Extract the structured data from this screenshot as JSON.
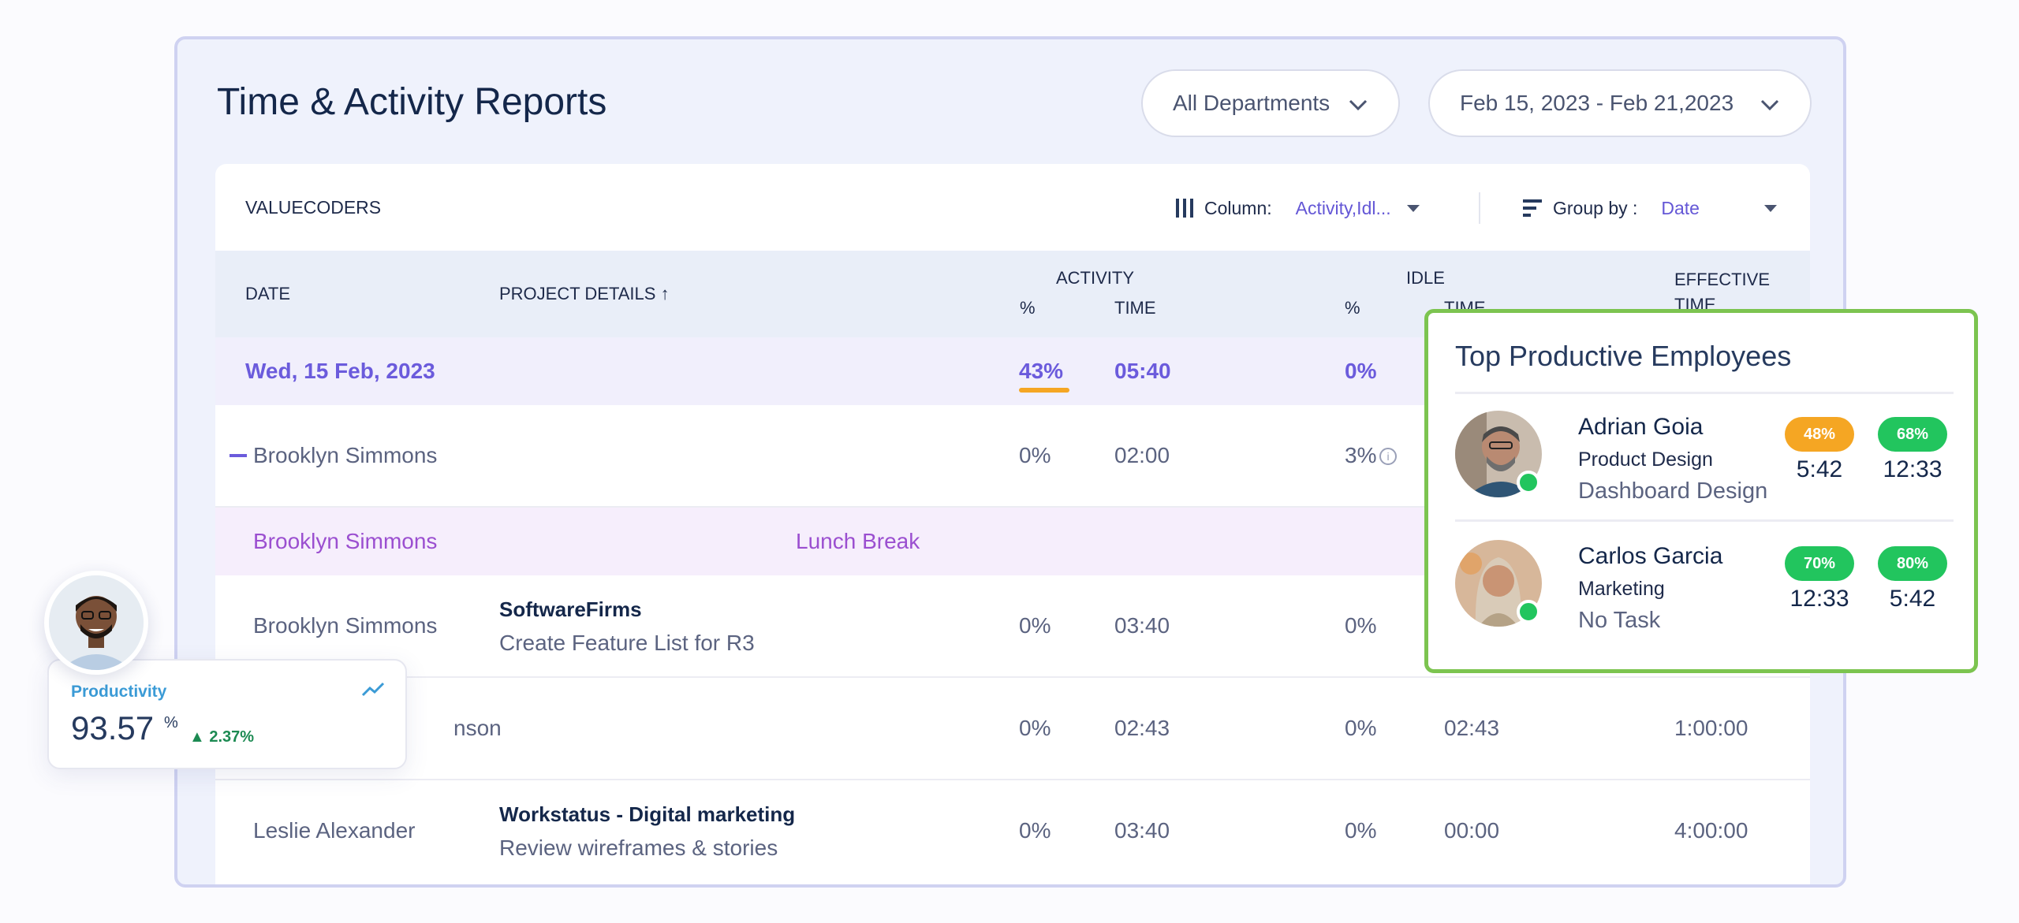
{
  "page": {
    "title": "Time & Activity Reports",
    "department_filter": "All Departments",
    "date_range": "Feb 15, 2023 - Feb 21,2023"
  },
  "toolbar": {
    "org_name": "VALUECODERS",
    "column_label": "Column:",
    "column_value": "Activity,Idl...",
    "group_label": "Group by :",
    "group_value": "Date"
  },
  "table": {
    "headers": {
      "date": "DATE",
      "project": "PROJECT DETAILS ↑",
      "activity": "ACTIVITY",
      "activity_pct": "%",
      "activity_time": "TIME",
      "idle": "IDLE",
      "idle_pct": "%",
      "idle_time": "TIME",
      "effective_1": "EFFECTIVE",
      "effective_2": "TIME"
    },
    "date_row": {
      "date": "Wed, 15 Feb, 2023",
      "activity_pct": "43%",
      "activity_time": "05:40",
      "idle_pct": "0%"
    },
    "row1": {
      "name": "Brooklyn Simmons",
      "activity_pct": "0%",
      "activity_time": "02:00",
      "idle_pct": "3%"
    },
    "break_row": {
      "name": "Brooklyn Simmons",
      "label": "Lunch Break"
    },
    "row2": {
      "name": "Brooklyn Simmons",
      "project": "SoftwareFirms",
      "task": "Create Feature List for R3",
      "activity_pct": "0%",
      "activity_time": "03:40",
      "idle_pct": "0%"
    },
    "row3": {
      "name_tail": "nson",
      "activity_pct": "0%",
      "activity_time": "02:43",
      "idle_pct": "0%",
      "idle_time": "02:43",
      "effective": "1:00:00"
    },
    "row4": {
      "name": "Leslie Alexander",
      "project": "Workstatus - Digital marketing",
      "task": "Review wireframes & stories",
      "activity_pct": "0%",
      "activity_time": "03:40",
      "idle_pct": "0%",
      "idle_time": "00:00",
      "effective": "4:00:00"
    }
  },
  "top_employees": {
    "title": "Top Productive Employees",
    "employees": [
      {
        "name": "Adrian Goia",
        "department": "Product Design",
        "task": "Dashboard Design",
        "pill1": "48%",
        "val1": "5:42",
        "pill2": "68%",
        "val2": "12:33"
      },
      {
        "name": "Carlos Garcia",
        "department": "Marketing",
        "task": "No Task",
        "pill1": "70%",
        "val1": "12:33",
        "pill2": "80%",
        "val2": "5:42"
      }
    ],
    "colors": {
      "orange": "#f5a623",
      "green": "#22c55e",
      "border": "#7cc450"
    }
  },
  "productivity": {
    "label": "Productivity",
    "value": "93.57",
    "unit": "%",
    "change": "▲ 2.37%"
  },
  "icons": [
    "chevron-down-icon",
    "columns-icon",
    "sort-lines-icon",
    "info-icon",
    "trend-icon",
    "online-dot-icon"
  ]
}
